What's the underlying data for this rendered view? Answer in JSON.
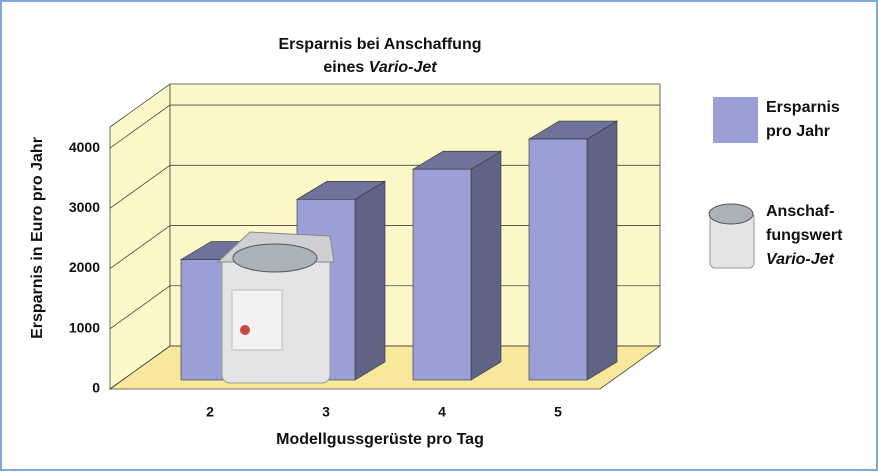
{
  "chart_data": {
    "type": "bar3d",
    "title": "Ersparnis bei Anschaffung",
    "title_line2": "eines",
    "title_line2_italic": "Vario-Jet",
    "x_label": "Modellgussgerüste pro Tag",
    "y_label": "Ersparnis in Euro pro Jahr",
    "categories": [
      "2",
      "3",
      "4",
      "5"
    ],
    "series": [
      {
        "name": [
          "Ersparnis",
          "pro Jahr"
        ],
        "color": "#9a9fd6",
        "values": [
          2000,
          3000,
          3500,
          4000
        ]
      }
    ],
    "image_legend": [
      "Anschaf-",
      "fungswert",
      "Vario-Jet"
    ],
    "ylim": [
      0,
      4350
    ],
    "yticks": [
      0,
      1000,
      2000,
      3000,
      4000
    ],
    "grid": true
  }
}
